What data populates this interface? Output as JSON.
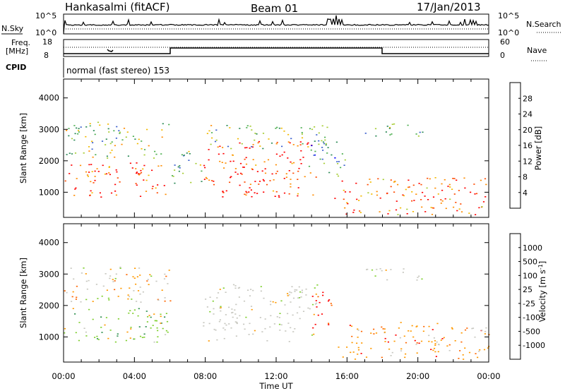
{
  "header": {
    "station": "Hankasalmi (fitACF)",
    "beam": "Beam 01",
    "date": "17/Jan/2013"
  },
  "noise_panel": {
    "left_label": "N.Sky",
    "right_label": "N.Search",
    "y_top": "10^5",
    "y_bottom": "10^0"
  },
  "freq_panel": {
    "left_label_1": "Freq.",
    "left_label_2": "[MHz]",
    "right_label": "Nave",
    "y_left_top": "18",
    "y_left_bottom": "8",
    "y_right_top": "60",
    "y_right_bottom": "0"
  },
  "cpid": {
    "label": "CPID",
    "mode": "normal (fast stereo) 153"
  },
  "chart_data": [
    {
      "type": "heatmap",
      "name": "power",
      "ylabel": "Slant Range [km]",
      "xlabel": "Time UT",
      "x_ticks": [
        "00:00",
        "04:00",
        "08:00",
        "12:00",
        "16:00",
        "20:00",
        "00:00"
      ],
      "y_ticks": [
        1000,
        2000,
        3000,
        4000
      ],
      "ylim": [
        200,
        4600
      ],
      "xlim_hours": [
        0,
        24
      ],
      "colorbar": {
        "label": "Power [dB]",
        "ticks": [
          "28",
          "24",
          "20",
          "16",
          "12",
          "8",
          "4"
        ],
        "colors": [
          "#ff0000",
          "#ff4a00",
          "#ff8c00",
          "#f2b900",
          "#a6cc33",
          "#4caf50",
          "#2e8b57",
          "#3a5fcd",
          "#0000ff"
        ]
      },
      "regions": [
        {
          "t": [
            0.0,
            6.0
          ],
          "r": [
            850,
            1950
          ],
          "level": 0.85
        },
        {
          "t": [
            0.0,
            6.0
          ],
          "r": [
            2100,
            3250
          ],
          "level": 0.45
        },
        {
          "t": [
            6.0,
            7.8
          ],
          "r": [
            1300,
            2400
          ],
          "level": 0.35
        },
        {
          "t": [
            7.8,
            14.3
          ],
          "r": [
            850,
            2700
          ],
          "level": 0.92
        },
        {
          "t": [
            8.0,
            15.0
          ],
          "r": [
            2400,
            3150
          ],
          "level": 0.4
        },
        {
          "t": [
            13.8,
            16.0
          ],
          "r": [
            1500,
            2700
          ],
          "level": 0.3
        },
        {
          "t": [
            15.2,
            24.0
          ],
          "r": [
            300,
            1500
          ],
          "level": 0.8
        },
        {
          "t": [
            17.0,
            20.5
          ],
          "r": [
            2800,
            3200
          ],
          "level": 0.3
        }
      ]
    },
    {
      "type": "heatmap",
      "name": "velocity",
      "ylabel": "Slant Range [km]",
      "xlabel": "Time UT",
      "x_ticks": [
        "00:00",
        "04:00",
        "08:00",
        "12:00",
        "16:00",
        "20:00",
        "00:00"
      ],
      "y_ticks": [
        1000,
        2000,
        3000,
        4000
      ],
      "ylim": [
        200,
        4600
      ],
      "xlim_hours": [
        0,
        24
      ],
      "colorbar": {
        "label": "Velocity [m s",
        "label_sup": "-1",
        "label_end": "]",
        "ticks": [
          "1000",
          "500",
          "100",
          "25",
          "-25",
          "-100",
          "-500",
          "-1000"
        ],
        "colors": [
          "#1f3fbf",
          "#2f8f4f",
          "#7fcf2f",
          "#c8c8c0",
          "#c8c8c0",
          "#ff9900",
          "#ff6600",
          "#ff0000"
        ]
      },
      "regions": [
        {
          "t": [
            0.0,
            6.0
          ],
          "r": [
            850,
            1950
          ],
          "kind": "green"
        },
        {
          "t": [
            0.0,
            6.0
          ],
          "r": [
            2100,
            3250
          ],
          "kind": "mixed"
        },
        {
          "t": [
            7.8,
            14.3
          ],
          "r": [
            850,
            2700
          ],
          "kind": "grey"
        },
        {
          "t": [
            14.0,
            15.2
          ],
          "r": [
            1200,
            2500
          ],
          "kind": "red"
        },
        {
          "t": [
            15.2,
            24.0
          ],
          "r": [
            300,
            1500
          ],
          "kind": "orange"
        },
        {
          "t": [
            17.0,
            20.5
          ],
          "r": [
            2800,
            3200
          ],
          "kind": "grey"
        }
      ]
    }
  ]
}
